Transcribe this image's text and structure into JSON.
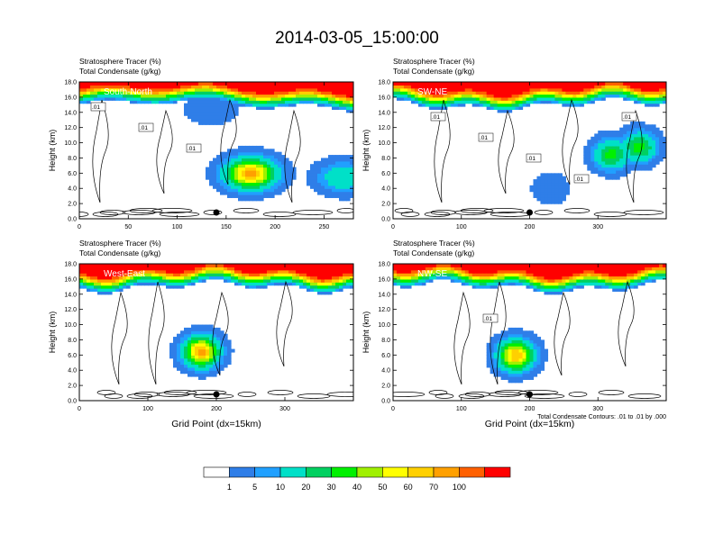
{
  "page": {
    "title": "2014-03-05_15:00:00"
  },
  "chart_data": [
    {
      "type": "heatmap",
      "left_title": "Stratosphere Tracer   (%)",
      "left_subtitle": "Total Condensate   (g/kg)",
      "panel_label": "South-North",
      "ylabel": "Height (km)",
      "xlabel": "",
      "xlim": [
        0,
        280
      ],
      "ylim": [
        0,
        18
      ],
      "x_ticks": [
        "0",
        "50",
        "100",
        "150",
        "200",
        "250"
      ],
      "x_tick_values": [
        0,
        50,
        100,
        150,
        200,
        250
      ],
      "y_ticks": [
        "0.0",
        "2.0",
        "4.0",
        "6.0",
        "8.0",
        "10.0",
        "12.0",
        "14.0",
        "16.0",
        "18.0"
      ],
      "contour_labels": [
        ".01",
        ".01",
        ".01"
      ],
      "marker_x": 140,
      "features": [
        {
          "x": 175,
          "y": 6.0,
          "peak": 75
        },
        {
          "x": 270,
          "y": 5.5,
          "peak": 20
        },
        {
          "x": 135,
          "y": 14.5,
          "peak": 5
        }
      ]
    },
    {
      "type": "heatmap",
      "left_title": "Stratosphere Tracer   (%)",
      "left_subtitle": "Total Condensate   (g/kg)",
      "panel_label": "SW-NE",
      "ylabel": "Height (km)",
      "xlabel": "",
      "xlim": [
        0,
        400
      ],
      "ylim": [
        0,
        18
      ],
      "x_ticks": [
        "0",
        "100",
        "200",
        "300"
      ],
      "x_tick_values": [
        0,
        100,
        200,
        300
      ],
      "y_ticks": [
        "0.0",
        "2.0",
        "4.0",
        "6.0",
        "8.0",
        "10.0",
        "12.0",
        "14.0",
        "16.0",
        "18.0"
      ],
      "contour_labels": [
        ".01",
        ".01",
        ".01",
        ".01",
        ".01"
      ],
      "marker_x": 200,
      "features": [
        {
          "x": 320,
          "y": 8.5,
          "peak": 35
        },
        {
          "x": 360,
          "y": 9.5,
          "peak": 35
        },
        {
          "x": 230,
          "y": 4.0,
          "peak": 5
        }
      ]
    },
    {
      "type": "heatmap",
      "left_title": "Stratosphere Tracer   (%)",
      "left_subtitle": "Total Condensate   (g/kg)",
      "panel_label": "West-East",
      "ylabel": "Height (km)",
      "xlabel": "Grid Point (dx=15km)",
      "xlim": [
        0,
        400
      ],
      "ylim": [
        0,
        18
      ],
      "x_ticks": [
        "0",
        "100",
        "200",
        "300"
      ],
      "x_tick_values": [
        0,
        100,
        200,
        300
      ],
      "y_ticks": [
        "0.0",
        "2.0",
        "4.0",
        "6.0",
        "8.0",
        "10.0",
        "12.0",
        "14.0",
        "16.0",
        "18.0"
      ],
      "contour_labels": [],
      "marker_x": 200,
      "features": [
        {
          "x": 178,
          "y": 6.5,
          "peak": 75
        }
      ]
    },
    {
      "type": "heatmap",
      "left_title": "Stratosphere Tracer   (%)",
      "left_subtitle": "Total Condensate   (g/kg)",
      "panel_label": "NW-SE",
      "ylabel": "Height (km)",
      "xlabel": "Grid Point (dx=15km)",
      "xlim": [
        0,
        400
      ],
      "ylim": [
        0,
        18
      ],
      "x_ticks": [
        "0",
        "100",
        "200",
        "300"
      ],
      "x_tick_values": [
        0,
        100,
        200,
        300
      ],
      "y_ticks": [
        "0.0",
        "2.0",
        "4.0",
        "6.0",
        "8.0",
        "10.0",
        "12.0",
        "14.0",
        "16.0",
        "18.0"
      ],
      "contour_labels": [
        ".01"
      ],
      "contour_info": "Total Condensate Contours: .01 to .01 by .000",
      "marker_x": 200,
      "features": [
        {
          "x": 180,
          "y": 6.0,
          "peak": 70
        }
      ]
    }
  ],
  "colorbar": {
    "labels": [
      "1",
      "5",
      "10",
      "20",
      "30",
      "40",
      "50",
      "60",
      "70",
      "100"
    ],
    "colors": [
      "#ffffff",
      "#2f7ee8",
      "#20a0ff",
      "#00e0c8",
      "#00d060",
      "#00f000",
      "#a0f000",
      "#ffff00",
      "#ffd000",
      "#ffa000",
      "#ff6000",
      "#ff0000"
    ]
  }
}
